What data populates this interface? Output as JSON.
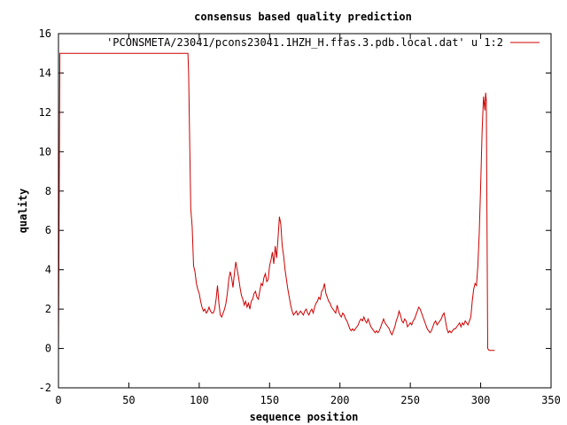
{
  "chart_data": {
    "type": "line",
    "title": "consensus based quality prediction",
    "xlabel": "sequence position",
    "ylabel": "quality",
    "xlim": [
      0,
      350
    ],
    "ylim": [
      -2,
      16
    ],
    "xticks": [
      0,
      50,
      100,
      150,
      200,
      250,
      300,
      350
    ],
    "yticks": [
      -2,
      0,
      2,
      4,
      6,
      8,
      10,
      12,
      14,
      16
    ],
    "grid": false,
    "legend_position": "top-right",
    "series": [
      {
        "name": "'PCONSMETA/23041/pcons23041.1HZH_H.ffas.3.pdb.local.dat' u 1:2",
        "color": "#cc0000",
        "points": [
          [
            0,
            0
          ],
          [
            0.5,
            7.4
          ],
          [
            1,
            15
          ],
          [
            92,
            15
          ],
          [
            92.5,
            13.9
          ],
          [
            93.3,
            10.2
          ],
          [
            94,
            7.1
          ],
          [
            95,
            6.2
          ],
          [
            96,
            4.2
          ],
          [
            97,
            3.9
          ],
          [
            98,
            3.3
          ],
          [
            99,
            3.0
          ],
          [
            100,
            2.8
          ],
          [
            101,
            2.4
          ],
          [
            102,
            2.1
          ],
          [
            103,
            1.9
          ],
          [
            104,
            2.0
          ],
          [
            105,
            1.8
          ],
          [
            106,
            1.9
          ],
          [
            107,
            2.1
          ],
          [
            108,
            1.9
          ],
          [
            109,
            1.8
          ],
          [
            110,
            1.8
          ],
          [
            111,
            2.0
          ],
          [
            112,
            2.5
          ],
          [
            113,
            3.2
          ],
          [
            114,
            2.3
          ],
          [
            115,
            1.7
          ],
          [
            116,
            1.6
          ],
          [
            117,
            1.8
          ],
          [
            118,
            2.0
          ],
          [
            119,
            2.3
          ],
          [
            120,
            2.8
          ],
          [
            121,
            3.5
          ],
          [
            122,
            3.9
          ],
          [
            123,
            3.6
          ],
          [
            124,
            3.1
          ],
          [
            125,
            3.8
          ],
          [
            126,
            4.4
          ],
          [
            127,
            4.0
          ],
          [
            128,
            3.6
          ],
          [
            129,
            3.1
          ],
          [
            130,
            2.7
          ],
          [
            131,
            2.5
          ],
          [
            132,
            2.2
          ],
          [
            133,
            2.4
          ],
          [
            134,
            2.1
          ],
          [
            135,
            2.3
          ],
          [
            136,
            2.0
          ],
          [
            137,
            2.4
          ],
          [
            138,
            2.5
          ],
          [
            139,
            2.8
          ],
          [
            140,
            2.9
          ],
          [
            141,
            2.6
          ],
          [
            142,
            2.5
          ],
          [
            143,
            2.9
          ],
          [
            144,
            3.3
          ],
          [
            145,
            3.2
          ],
          [
            146,
            3.6
          ],
          [
            147,
            3.8
          ],
          [
            148,
            3.4
          ],
          [
            149,
            3.5
          ],
          [
            150,
            4.2
          ],
          [
            151,
            4.5
          ],
          [
            152,
            4.9
          ],
          [
            153,
            4.3
          ],
          [
            154,
            5.2
          ],
          [
            155,
            4.6
          ],
          [
            156,
            5.6
          ],
          [
            157,
            6.7
          ],
          [
            158,
            6.3
          ],
          [
            159,
            5.2
          ],
          [
            160,
            4.7
          ],
          [
            161,
            4.0
          ],
          [
            162,
            3.5
          ],
          [
            163,
            3.0
          ],
          [
            164,
            2.6
          ],
          [
            165,
            2.2
          ],
          [
            166,
            1.9
          ],
          [
            167,
            1.7
          ],
          [
            168,
            1.8
          ],
          [
            169,
            1.9
          ],
          [
            170,
            1.7
          ],
          [
            171,
            1.8
          ],
          [
            172,
            1.9
          ],
          [
            173,
            1.8
          ],
          [
            174,
            1.7
          ],
          [
            175,
            1.9
          ],
          [
            176,
            2.0
          ],
          [
            177,
            1.8
          ],
          [
            178,
            1.7
          ],
          [
            179,
            1.9
          ],
          [
            180,
            2.0
          ],
          [
            181,
            1.8
          ],
          [
            182,
            2.1
          ],
          [
            183,
            2.3
          ],
          [
            184,
            2.4
          ],
          [
            185,
            2.6
          ],
          [
            186,
            2.5
          ],
          [
            187,
            2.9
          ],
          [
            188,
            3.0
          ],
          [
            189,
            3.3
          ],
          [
            190,
            2.8
          ],
          [
            191,
            2.6
          ],
          [
            192,
            2.4
          ],
          [
            193,
            2.3
          ],
          [
            194,
            2.1
          ],
          [
            195,
            2.0
          ],
          [
            196,
            1.9
          ],
          [
            197,
            1.8
          ],
          [
            198,
            2.2
          ],
          [
            199,
            1.9
          ],
          [
            200,
            1.7
          ],
          [
            201,
            1.6
          ],
          [
            202,
            1.8
          ],
          [
            203,
            1.7
          ],
          [
            204,
            1.5
          ],
          [
            205,
            1.4
          ],
          [
            206,
            1.2
          ],
          [
            207,
            1.0
          ],
          [
            208,
            0.9
          ],
          [
            209,
            1.0
          ],
          [
            210,
            0.9
          ],
          [
            211,
            1.0
          ],
          [
            212,
            1.1
          ],
          [
            213,
            1.2
          ],
          [
            214,
            1.4
          ],
          [
            215,
            1.5
          ],
          [
            216,
            1.4
          ],
          [
            217,
            1.6
          ],
          [
            218,
            1.4
          ],
          [
            219,
            1.3
          ],
          [
            220,
            1.5
          ],
          [
            221,
            1.3
          ],
          [
            222,
            1.1
          ],
          [
            223,
            1.0
          ],
          [
            224,
            0.9
          ],
          [
            225,
            0.8
          ],
          [
            226,
            0.9
          ],
          [
            227,
            0.8
          ],
          [
            228,
            0.9
          ],
          [
            229,
            1.1
          ],
          [
            230,
            1.3
          ],
          [
            231,
            1.5
          ],
          [
            232,
            1.3
          ],
          [
            233,
            1.2
          ],
          [
            234,
            1.1
          ],
          [
            235,
            1.0
          ],
          [
            236,
            0.8
          ],
          [
            237,
            0.7
          ],
          [
            238,
            0.9
          ],
          [
            239,
            1.1
          ],
          [
            240,
            1.4
          ],
          [
            241,
            1.6
          ],
          [
            242,
            1.9
          ],
          [
            243,
            1.7
          ],
          [
            244,
            1.4
          ],
          [
            245,
            1.3
          ],
          [
            246,
            1.5
          ],
          [
            247,
            1.4
          ],
          [
            248,
            1.1
          ],
          [
            249,
            1.2
          ],
          [
            250,
            1.3
          ],
          [
            251,
            1.2
          ],
          [
            252,
            1.4
          ],
          [
            253,
            1.5
          ],
          [
            254,
            1.7
          ],
          [
            255,
            1.9
          ],
          [
            256,
            2.1
          ],
          [
            257,
            2.0
          ],
          [
            258,
            1.8
          ],
          [
            259,
            1.6
          ],
          [
            260,
            1.4
          ],
          [
            261,
            1.2
          ],
          [
            262,
            1.0
          ],
          [
            263,
            0.9
          ],
          [
            264,
            0.8
          ],
          [
            265,
            0.9
          ],
          [
            266,
            1.1
          ],
          [
            267,
            1.3
          ],
          [
            268,
            1.4
          ],
          [
            269,
            1.2
          ],
          [
            270,
            1.3
          ],
          [
            271,
            1.4
          ],
          [
            272,
            1.5
          ],
          [
            273,
            1.7
          ],
          [
            274,
            1.8
          ],
          [
            275,
            1.4
          ],
          [
            276,
            1.0
          ],
          [
            277,
            0.8
          ],
          [
            278,
            0.9
          ],
          [
            279,
            0.8
          ],
          [
            280,
            0.9
          ],
          [
            281,
            1.0
          ],
          [
            282,
            1.0
          ],
          [
            283,
            1.1
          ],
          [
            284,
            1.2
          ],
          [
            285,
            1.3
          ],
          [
            286,
            1.1
          ],
          [
            287,
            1.3
          ],
          [
            288,
            1.2
          ],
          [
            289,
            1.4
          ],
          [
            290,
            1.3
          ],
          [
            291,
            1.2
          ],
          [
            292,
            1.4
          ],
          [
            293,
            1.6
          ],
          [
            294,
            2.4
          ],
          [
            295,
            3.0
          ],
          [
            296,
            3.3
          ],
          [
            297,
            3.2
          ],
          [
            298,
            4.2
          ],
          [
            299,
            5.9
          ],
          [
            300,
            8.3
          ],
          [
            301,
            11.0
          ],
          [
            302,
            12.8
          ],
          [
            303,
            12.1
          ],
          [
            303.5,
            13.0
          ],
          [
            304,
            12.6
          ],
          [
            305,
            0
          ],
          [
            306,
            -0.1
          ],
          [
            310,
            -0.1
          ]
        ]
      }
    ]
  }
}
